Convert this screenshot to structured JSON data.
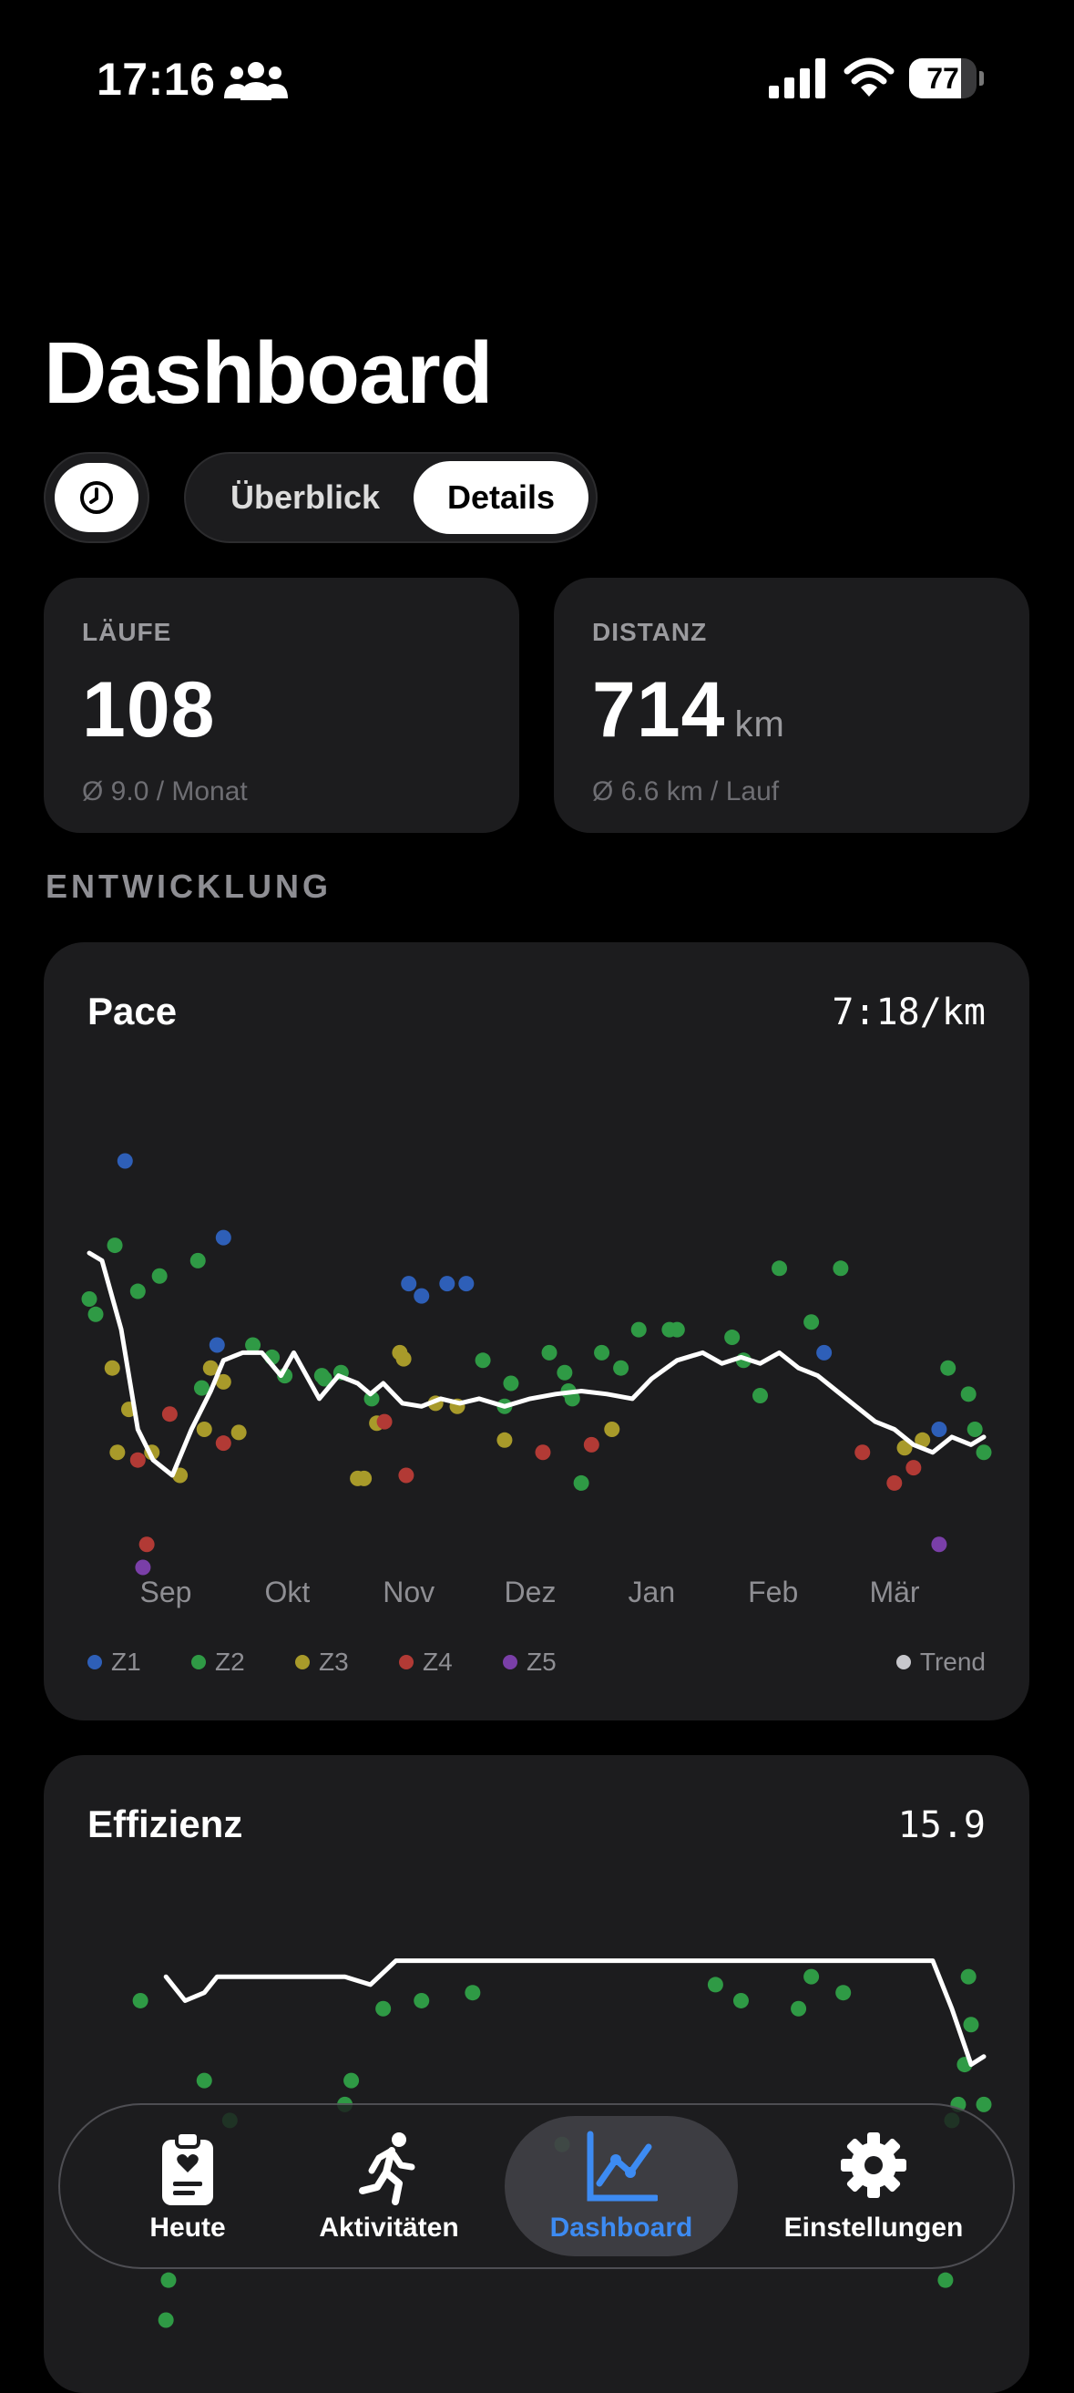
{
  "status_bar": {
    "time": "17:16",
    "battery": "77",
    "battery_level": 0.77
  },
  "title": "Dashboard",
  "segmented_control": {
    "options": [
      "Überblick",
      "Details"
    ],
    "selected": "Details"
  },
  "stats": [
    {
      "label": "LÄUFE",
      "value": "108",
      "unit": "",
      "sub": "Ø 9.0 / Monat"
    },
    {
      "label": "DISTANZ",
      "value": "714",
      "unit": "km",
      "sub": "Ø 6.6 km / Lauf"
    }
  ],
  "section_heading": "ENTWICKLUNG",
  "colors": {
    "Z1": "#2e5fb8",
    "Z2": "#2f9a45",
    "Z3": "#a89a2a",
    "Z4": "#b23a35",
    "Z5": "#7a3fa8",
    "trend": "#ffffff"
  },
  "pace_card": {
    "title": "Pace",
    "value": "7:18/km"
  },
  "efficiency_card": {
    "title": "Effizienz",
    "value": "15.9"
  },
  "legend": {
    "zones": [
      "Z1",
      "Z2",
      "Z3",
      "Z4",
      "Z5"
    ],
    "trend": "Trend"
  },
  "chart_data": [
    {
      "type": "scatter",
      "title": "Pace",
      "x_tick_labels": [
        "Sep",
        "Okt",
        "Nov",
        "Dez",
        "Jan",
        "Feb",
        "Mär"
      ],
      "y_axis": "pace (inverted, faster at top)",
      "grid": false,
      "legend_placement": "bottom",
      "series": [
        {
          "name": "Z1",
          "points": [
            [
              0.28,
              8.3
            ],
            [
              1.05,
              8.8
            ],
            [
              1.0,
              9.5
            ],
            [
              2.5,
              9.1
            ],
            [
              2.6,
              9.18
            ],
            [
              2.8,
              9.1
            ],
            [
              2.95,
              9.1
            ],
            [
              5.75,
              9.55
            ],
            [
              6.65,
              10.05
            ]
          ]
        },
        {
          "name": "Z2",
          "points": [
            [
              0.0,
              9.2
            ],
            [
              0.05,
              9.3
            ],
            [
              0.2,
              8.85
            ],
            [
              0.38,
              9.15
            ],
            [
              0.55,
              9.05
            ],
            [
              0.85,
              8.95
            ],
            [
              0.88,
              9.78
            ],
            [
              1.28,
              9.5
            ],
            [
              1.43,
              9.58
            ],
            [
              1.53,
              9.7
            ],
            [
              1.84,
              9.72
            ],
            [
              1.82,
              9.7
            ],
            [
              1.97,
              9.68
            ],
            [
              2.21,
              9.85
            ],
            [
              3.08,
              9.6
            ],
            [
              3.25,
              9.9
            ],
            [
              3.3,
              9.75
            ],
            [
              3.6,
              9.55
            ],
            [
              3.72,
              9.68
            ],
            [
              3.75,
              9.8
            ],
            [
              3.78,
              9.85
            ],
            [
              3.85,
              10.4
            ],
            [
              4.01,
              9.55
            ],
            [
              4.16,
              9.65
            ],
            [
              4.3,
              9.4
            ],
            [
              4.54,
              9.4
            ],
            [
              4.6,
              9.4
            ],
            [
              5.03,
              9.45
            ],
            [
              5.12,
              9.6
            ],
            [
              5.25,
              9.83
            ],
            [
              5.4,
              9.0
            ],
            [
              5.65,
              9.35
            ],
            [
              5.88,
              9.0
            ],
            [
              6.72,
              9.65
            ],
            [
              6.88,
              9.82
            ],
            [
              6.93,
              10.05
            ],
            [
              7.0,
              10.2
            ]
          ]
        },
        {
          "name": "Z3",
          "points": [
            [
              0.18,
              9.65
            ],
            [
              0.22,
              10.2
            ],
            [
              0.31,
              9.92
            ],
            [
              0.49,
              10.2
            ],
            [
              0.71,
              10.35
            ],
            [
              0.9,
              10.05
            ],
            [
              0.95,
              9.65
            ],
            [
              1.05,
              9.74
            ],
            [
              1.17,
              10.07
            ],
            [
              2.1,
              10.37
            ],
            [
              2.15,
              10.37
            ],
            [
              2.25,
              10.01
            ],
            [
              2.43,
              9.55
            ],
            [
              2.46,
              9.59
            ],
            [
              2.71,
              9.88
            ],
            [
              2.88,
              9.9
            ],
            [
              3.25,
              10.12
            ],
            [
              4.09,
              10.05
            ],
            [
              6.38,
              10.17
            ],
            [
              6.52,
              10.12
            ]
          ]
        },
        {
          "name": "Z4",
          "points": [
            [
              0.38,
              10.25
            ],
            [
              0.45,
              10.8
            ],
            [
              0.63,
              9.95
            ],
            [
              1.05,
              10.14
            ],
            [
              2.31,
              10.0
            ],
            [
              2.48,
              10.35
            ],
            [
              3.55,
              10.2
            ],
            [
              3.93,
              10.15
            ],
            [
              6.05,
              10.2
            ],
            [
              6.3,
              10.4
            ],
            [
              6.45,
              10.3
            ]
          ]
        },
        {
          "name": "Z5",
          "points": [
            [
              0.42,
              10.95
            ],
            [
              6.65,
              10.8
            ]
          ]
        }
      ],
      "trend": [
        [
          0.0,
          8.9
        ],
        [
          0.1,
          8.95
        ],
        [
          0.25,
          9.4
        ],
        [
          0.38,
          10.05
        ],
        [
          0.5,
          10.25
        ],
        [
          0.65,
          10.35
        ],
        [
          0.8,
          10.05
        ],
        [
          0.95,
          9.8
        ],
        [
          1.05,
          9.6
        ],
        [
          1.2,
          9.55
        ],
        [
          1.35,
          9.55
        ],
        [
          1.5,
          9.7
        ],
        [
          1.6,
          9.55
        ],
        [
          1.7,
          9.7
        ],
        [
          1.8,
          9.85
        ],
        [
          1.95,
          9.7
        ],
        [
          2.1,
          9.75
        ],
        [
          2.2,
          9.82
        ],
        [
          2.3,
          9.75
        ],
        [
          2.45,
          9.88
        ],
        [
          2.6,
          9.9
        ],
        [
          2.75,
          9.85
        ],
        [
          2.9,
          9.88
        ],
        [
          3.05,
          9.85
        ],
        [
          3.25,
          9.9
        ],
        [
          3.45,
          9.85
        ],
        [
          3.65,
          9.82
        ],
        [
          3.85,
          9.8
        ],
        [
          4.05,
          9.82
        ],
        [
          4.25,
          9.85
        ],
        [
          4.4,
          9.72
        ],
        [
          4.6,
          9.6
        ],
        [
          4.8,
          9.55
        ],
        [
          4.95,
          9.62
        ],
        [
          5.1,
          9.58
        ],
        [
          5.25,
          9.62
        ],
        [
          5.4,
          9.55
        ],
        [
          5.55,
          9.65
        ],
        [
          5.7,
          9.7
        ],
        [
          5.85,
          9.8
        ],
        [
          6.0,
          9.9
        ],
        [
          6.15,
          10.0
        ],
        [
          6.3,
          10.05
        ],
        [
          6.45,
          10.15
        ],
        [
          6.6,
          10.2
        ],
        [
          6.75,
          10.1
        ],
        [
          6.9,
          10.15
        ],
        [
          7.0,
          10.1
        ]
      ]
    },
    {
      "type": "scatter",
      "title": "Effizienz",
      "x_tick_labels": [],
      "grid": false,
      "series": [
        {
          "name": "Z2",
          "points": [
            [
              0.6,
              20.5
            ],
            [
              0.62,
              20.0
            ],
            [
              1.1,
              18.0
            ],
            [
              0.9,
              17.5
            ],
            [
              2.0,
              17.8
            ],
            [
              2.05,
              17.5
            ],
            [
              3.7,
              18.3
            ],
            [
              6.7,
              20.0
            ],
            [
              6.75,
              18.0
            ],
            [
              6.8,
              17.8
            ],
            [
              6.85,
              17.3
            ],
            [
              6.9,
              16.8
            ],
            [
              0.4,
              16.5
            ],
            [
              2.3,
              16.6
            ],
            [
              2.6,
              16.5
            ],
            [
              3.0,
              16.4
            ],
            [
              4.9,
              16.3
            ],
            [
              5.1,
              16.5
            ],
            [
              5.55,
              16.6
            ],
            [
              5.65,
              16.2
            ],
            [
              5.9,
              16.4
            ],
            [
              6.88,
              16.2
            ],
            [
              7.0,
              17.8
            ]
          ]
        }
      ],
      "trend": [
        [
          0.6,
          16.2
        ],
        [
          0.75,
          16.5
        ],
        [
          0.9,
          16.4
        ],
        [
          1.0,
          16.2
        ],
        [
          2.0,
          16.2
        ],
        [
          2.2,
          16.3
        ],
        [
          2.4,
          16.0
        ],
        [
          6.6,
          16.0
        ],
        [
          6.75,
          16.6
        ],
        [
          6.9,
          17.3
        ],
        [
          7.0,
          17.2
        ]
      ]
    }
  ],
  "tab_bar": {
    "items": [
      {
        "label": "Heute",
        "icon": "clipboard-heart-icon"
      },
      {
        "label": "Aktivitäten",
        "icon": "runner-icon"
      },
      {
        "label": "Dashboard",
        "icon": "line-chart-icon",
        "active": true
      },
      {
        "label": "Einstellungen",
        "icon": "gear-icon"
      }
    ],
    "active_color": "#3d8bf2"
  }
}
